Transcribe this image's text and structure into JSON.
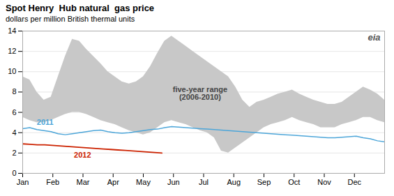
{
  "chart_data": {
    "type": "line",
    "title": "Spot Henry  Hub natural  gas price",
    "subtitle": "dollars per million British thermal units",
    "xlim": [
      0,
      12
    ],
    "xticks": [
      {
        "value": 0,
        "label": "Jan"
      },
      {
        "value": 1,
        "label": "Feb"
      },
      {
        "value": 2,
        "label": "Mar"
      },
      {
        "value": 3,
        "label": "Apr"
      },
      {
        "value": 4,
        "label": "May"
      },
      {
        "value": 5,
        "label": "Jun"
      },
      {
        "value": 6,
        "label": "Jul"
      },
      {
        "value": 7,
        "label": "Aug"
      },
      {
        "value": 8,
        "label": "Sep"
      },
      {
        "value": 9,
        "label": "Oct"
      },
      {
        "value": 10,
        "label": "Nov"
      },
      {
        "value": 11,
        "label": "Dec"
      }
    ],
    "ylim": [
      0,
      14
    ],
    "yticks": [
      0,
      2,
      4,
      6,
      8,
      10,
      12,
      14
    ],
    "grid": true,
    "band": {
      "annotation": "five-year range\n(2006-2010)",
      "color": "#c8c8c8",
      "x": [
        0,
        0.235294,
        0.470588,
        0.705882,
        0.941176,
        1.176471,
        1.411765,
        1.647059,
        1.882353,
        2.117647,
        2.352941,
        2.588235,
        2.823529,
        3.058824,
        3.294118,
        3.529412,
        3.764706,
        4,
        4.235294,
        4.470588,
        4.705882,
        4.941176,
        5.176471,
        5.411765,
        5.647059,
        5.882353,
        6.117647,
        6.352941,
        6.588235,
        6.823529,
        7.058824,
        7.294118,
        7.529412,
        7.764706,
        8,
        8.235294,
        8.470588,
        8.705882,
        8.941176,
        9.176471,
        9.411765,
        9.647059,
        9.882353,
        10.117647,
        10.352941,
        10.588235,
        10.823529,
        11.058824,
        11.294118,
        11.529412,
        11.764706,
        12
      ],
      "upper": [
        9.5,
        9.2,
        8.0,
        7.2,
        7.5,
        9.5,
        11.5,
        13.2,
        13.0,
        12.2,
        11.5,
        10.8,
        10.0,
        9.5,
        9.0,
        8.8,
        9.0,
        9.5,
        10.5,
        11.8,
        13.0,
        13.5,
        13.0,
        12.5,
        12.0,
        11.5,
        11.0,
        10.5,
        10.0,
        9.5,
        8.5,
        7.2,
        6.5,
        7.0,
        7.2,
        7.5,
        7.8,
        8.0,
        8.2,
        7.8,
        7.5,
        7.2,
        7.0,
        6.8,
        6.8,
        7.0,
        7.5,
        8.0,
        8.5,
        8.2,
        7.8,
        7.2
      ],
      "lower": [
        5.5,
        5.2,
        5.0,
        5.0,
        5.2,
        5.5,
        5.8,
        6.0,
        6.0,
        5.8,
        5.5,
        5.2,
        5.0,
        4.8,
        4.5,
        4.2,
        4.0,
        3.8,
        4.0,
        4.5,
        5.0,
        5.2,
        5.0,
        4.8,
        4.5,
        4.2,
        4.0,
        3.5,
        2.2,
        2.0,
        2.5,
        3.0,
        3.5,
        4.0,
        4.5,
        4.8,
        5.0,
        5.2,
        5.5,
        5.2,
        5.0,
        4.8,
        4.5,
        4.5,
        4.5,
        4.8,
        5.0,
        5.2,
        5.5,
        5.5,
        5.2,
        5.0
      ]
    },
    "series": [
      {
        "name": "2011",
        "color": "#4da6d9",
        "x": [
          0,
          0.235294,
          0.470588,
          0.705882,
          0.941176,
          1.176471,
          1.411765,
          1.647059,
          1.882353,
          2.117647,
          2.352941,
          2.588235,
          2.823529,
          3.058824,
          3.294118,
          3.529412,
          3.764706,
          4,
          4.235294,
          4.470588,
          4.705882,
          4.941176,
          5.176471,
          5.411765,
          5.647059,
          5.882353,
          6.117647,
          6.352941,
          6.588235,
          6.823529,
          7.058824,
          7.294118,
          7.529412,
          7.764706,
          8,
          8.235294,
          8.470588,
          8.705882,
          8.941176,
          9.176471,
          9.411765,
          9.647059,
          9.882353,
          10.117647,
          10.352941,
          10.588235,
          10.823529,
          11.058824,
          11.294118,
          11.529412,
          11.764706,
          12
        ],
        "values": [
          4.4,
          4.5,
          4.3,
          4.2,
          4.1,
          3.9,
          3.8,
          3.9,
          4.0,
          4.1,
          4.2,
          4.25,
          4.1,
          4.0,
          3.95,
          4.0,
          4.1,
          4.2,
          4.3,
          4.35,
          4.5,
          4.6,
          4.55,
          4.5,
          4.45,
          4.4,
          4.35,
          4.3,
          4.25,
          4.2,
          4.15,
          4.1,
          4.05,
          4.0,
          3.95,
          3.9,
          3.85,
          3.8,
          3.75,
          3.7,
          3.65,
          3.6,
          3.55,
          3.5,
          3.5,
          3.55,
          3.6,
          3.65,
          3.5,
          3.4,
          3.2,
          3.1
        ]
      },
      {
        "name": "2012",
        "color": "#cc2200",
        "x": [
          0,
          0.242915,
          0.48583,
          0.728745,
          0.97166,
          1.214575,
          1.45749,
          1.700405,
          1.94332,
          2.186235,
          2.42915,
          2.672065,
          2.91498,
          3.157895,
          3.40081,
          3.643725,
          3.88664,
          4.129555,
          4.37247,
          4.615385
        ],
        "values": [
          2.9,
          2.85,
          2.8,
          2.8,
          2.75,
          2.7,
          2.65,
          2.6,
          2.55,
          2.5,
          2.45,
          2.4,
          2.35,
          2.3,
          2.25,
          2.2,
          2.15,
          2.1,
          2.05,
          2.0
        ]
      }
    ],
    "annotations": [
      "eia"
    ]
  }
}
